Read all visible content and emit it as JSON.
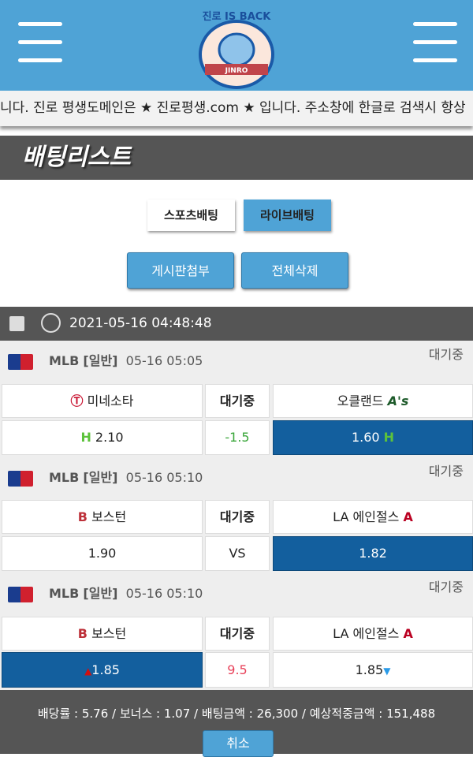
{
  "ticker": "니다. 진로 평생도메인은 ★ 진로평생.com ★ 입니다. 주소창에 한글로 검색시 항상",
  "logo": {
    "text": "진로 IS BACK",
    "banner": "JINRO"
  },
  "page_title": "배팅리스트",
  "tabs": [
    {
      "label": "스포츠배팅",
      "active": false
    },
    {
      "label": "라이브배팅",
      "active": true
    }
  ],
  "actions": {
    "attach": "게시판첨부",
    "delete_all": "전체삭제"
  },
  "bet": {
    "datetime": "2021-05-16 04:48:48"
  },
  "games": [
    {
      "league": "MLB",
      "type": "[일반]",
      "time": "05-16 05:05",
      "status": "대기중",
      "home": "미네소타",
      "mid": "대기중",
      "away": "오클랜드",
      "home_odds": "2.10",
      "handicap": "-1.5",
      "away_odds": "1.60",
      "home_mark": "H",
      "away_mark": "H",
      "selected": "away"
    },
    {
      "league": "MLB",
      "type": "[일반]",
      "time": "05-16 05:10",
      "status": "대기중",
      "home": "보스턴",
      "mid": "대기중",
      "away": "LA 에인절스",
      "home_odds": "1.90",
      "handicap": "VS",
      "away_odds": "1.82",
      "selected": "away"
    },
    {
      "league": "MLB",
      "type": "[일반]",
      "time": "05-16 05:10",
      "status": "대기중",
      "home": "보스턴",
      "mid": "대기중",
      "away": "LA 에인절스",
      "home_odds": "1.85",
      "handicap": "9.5",
      "away_odds": "1.85",
      "home_mark": "▲",
      "away_mark": "▼",
      "selected": "home"
    }
  ],
  "summary": "배당률 : 5.76 / 보너스 : 1.07 / 배팅금액 : 26,300 / 예상적중금액 : 151,488",
  "cancel": "취소",
  "colors": {
    "header": "#4fa3d6",
    "selected": "#135f9e",
    "dark": "#555555",
    "handicap_green": "#3aa63a",
    "over_red": "#e8425a"
  }
}
